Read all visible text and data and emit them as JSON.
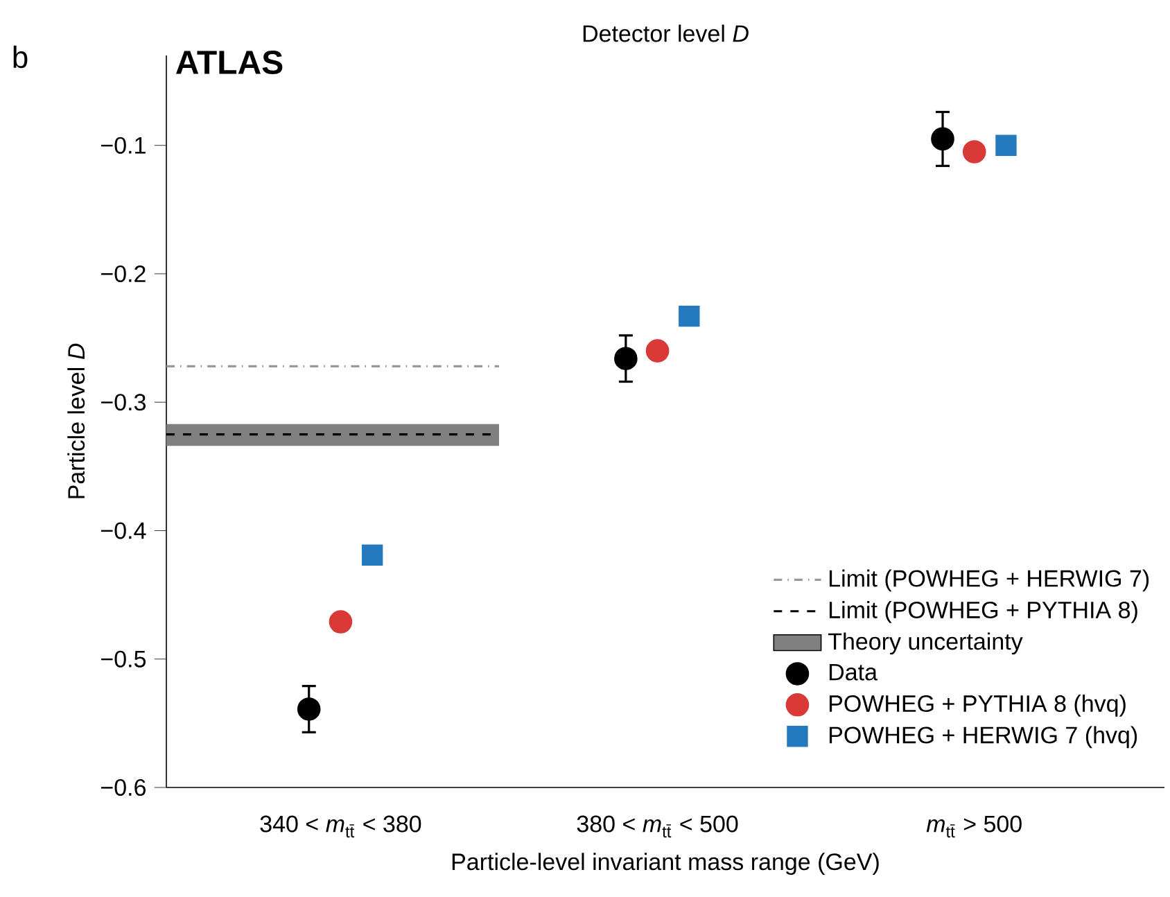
{
  "chart_data": {
    "type": "scatter",
    "title": "Detector level *D*",
    "xlabel": "Particle-level invariant mass range (GeV)",
    "ylabel": "Particle level *D*",
    "categories": [
      "340 < *m*$_{tt̄}$ < 380",
      "380 < *m*$_{tt̄}$ < 500",
      "*m*$_{tt̄}$ > 500"
    ],
    "ylim": [
      -0.6,
      -0.03
    ],
    "yticks": [
      {
        "value": -0.6,
        "label": "−0.6"
      },
      {
        "value": -0.5,
        "label": "−0.5"
      },
      {
        "value": -0.4,
        "label": "−0.4"
      },
      {
        "value": -0.3,
        "label": "−0.3"
      },
      {
        "value": -0.2,
        "label": "−0.2"
      },
      {
        "value": -0.1,
        "label": "−0.1"
      }
    ],
    "series": [
      {
        "name": "Data",
        "color": "#000000",
        "marker": "circle",
        "values": [
          -0.539,
          -0.266,
          -0.095
        ],
        "errors": [
          0.018,
          0.018,
          0.021
        ]
      },
      {
        "name": "POWHEG + PYTHIA 8 (hvq)",
        "color": "#d93a37",
        "marker": "circle",
        "values": [
          -0.471,
          -0.26,
          -0.105
        ]
      },
      {
        "name": "POWHEG + HERWIG 7 (hvq)",
        "color": "#2479bf",
        "marker": "square",
        "values": [
          -0.419,
          -0.233,
          -0.1
        ]
      }
    ],
    "ref_lines": [
      {
        "axis": "y",
        "value": -0.272,
        "label": "Limit (POWHEG + HERWIG 7)",
        "color": "#999999",
        "line_style": "dashdot"
      },
      {
        "axis": "y",
        "value": -0.325,
        "label": "Limit (POWHEG + PYTHIA 8)",
        "color": "#000000",
        "line_style": "dashed"
      }
    ],
    "bands": [
      {
        "axis": "y",
        "from": -0.334,
        "to": -0.317,
        "label": "Theory uncertainty",
        "color": "#808080"
      }
    ],
    "legend": "bottom right",
    "grid": false,
    "annotations": [
      "b",
      "**ATLAS**"
    ]
  }
}
